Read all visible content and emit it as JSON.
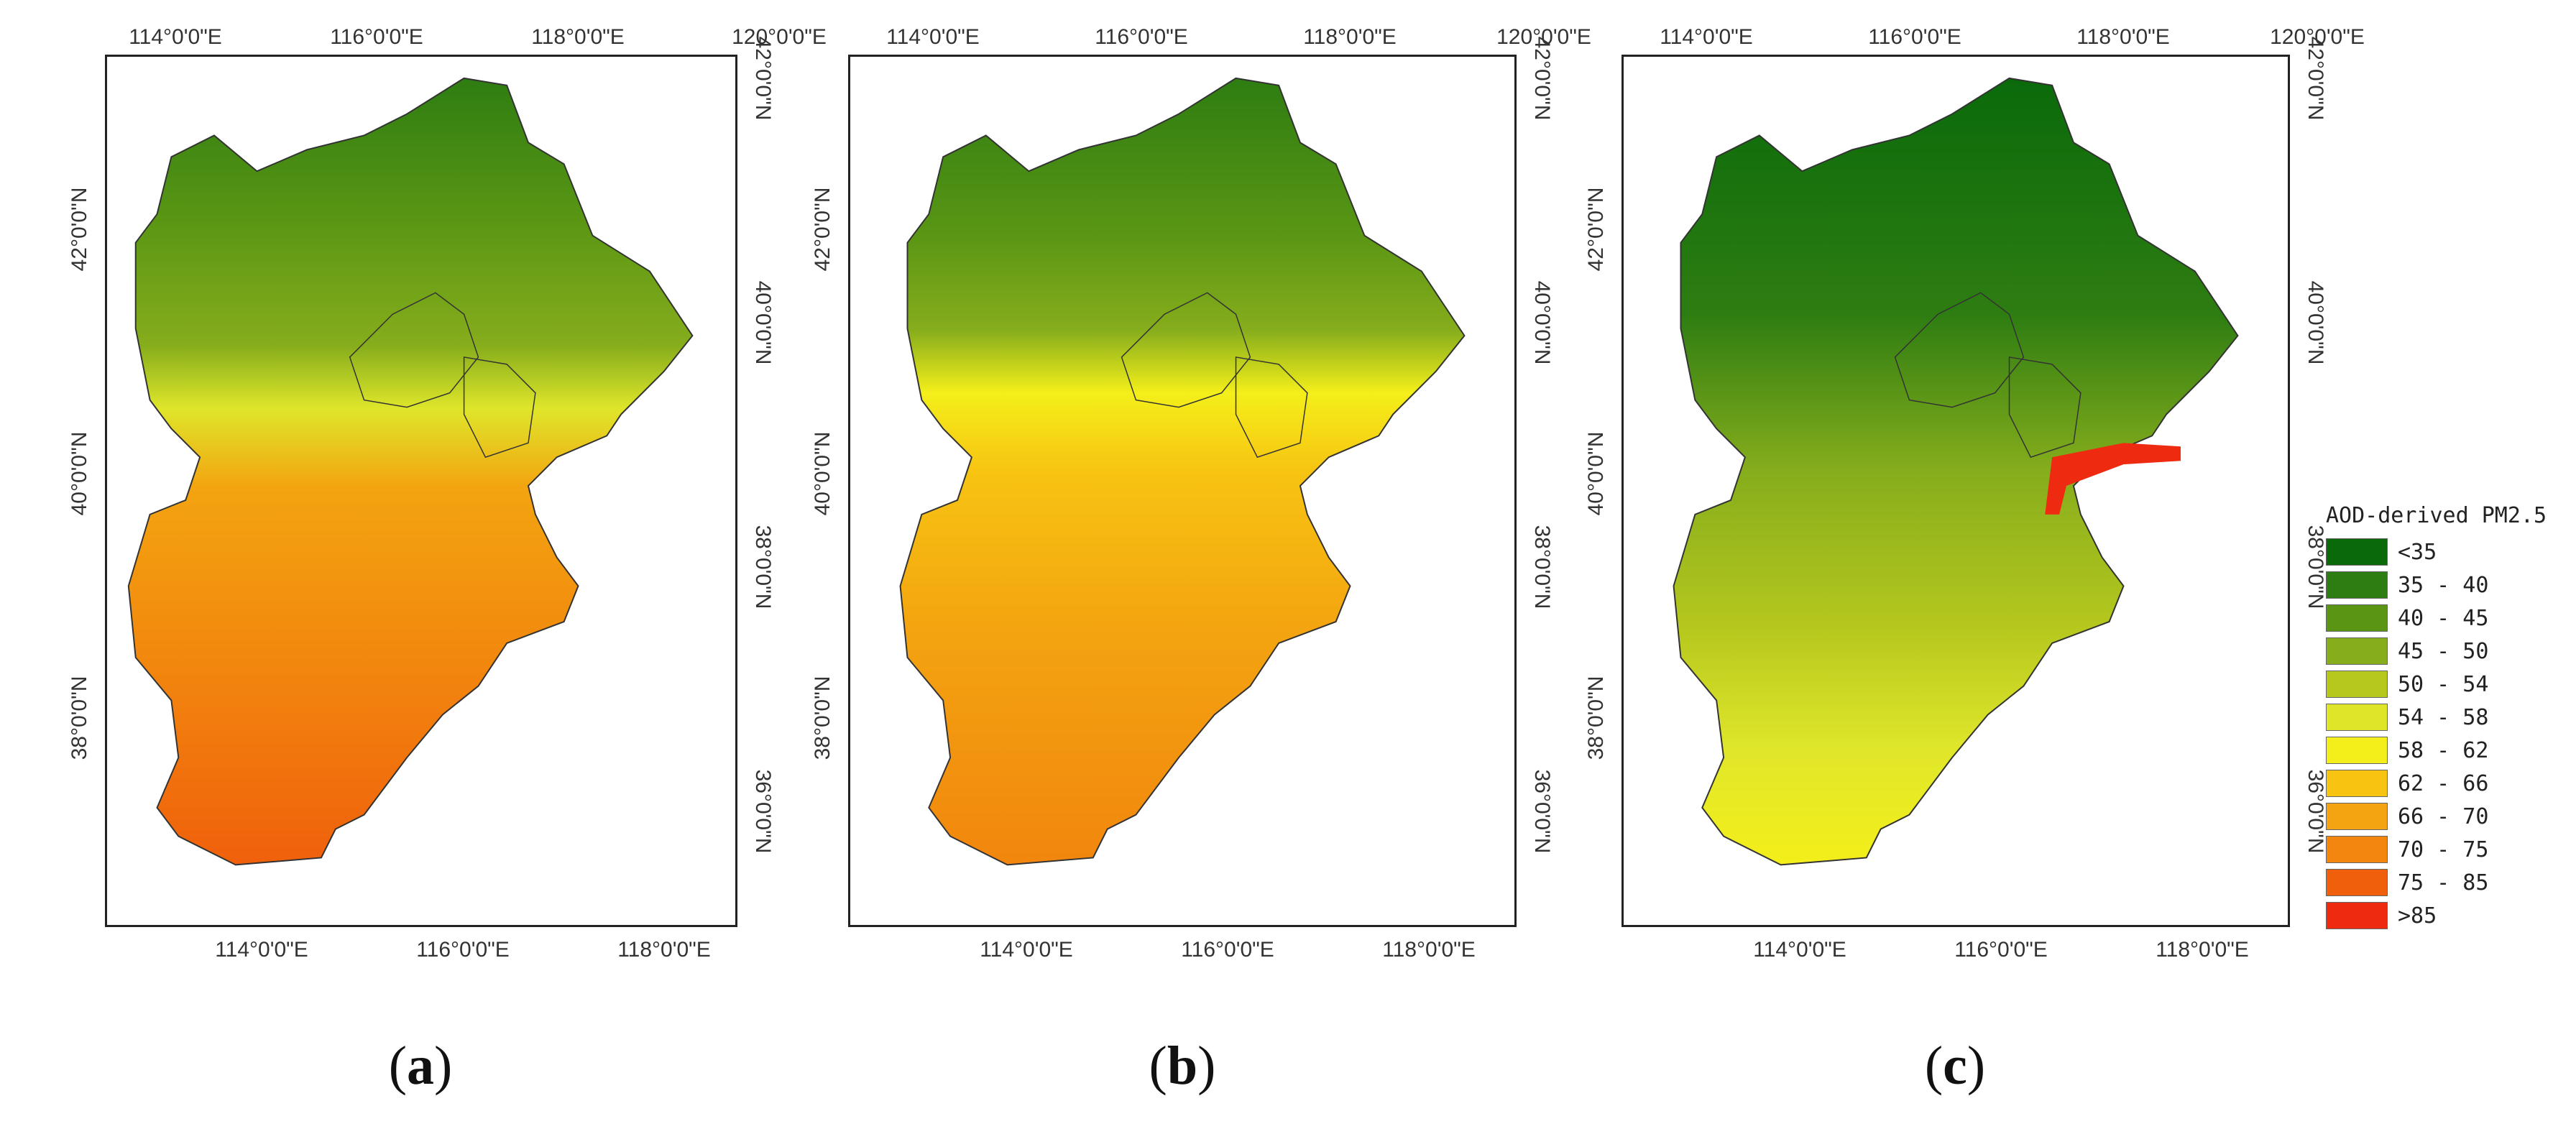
{
  "panels": [
    {
      "label": "a",
      "top_lon": [
        "114°0'0\"E",
        "116°0'0\"E",
        "118°0'0\"E",
        "120°0'0\"E"
      ],
      "bottom_lon": [
        "114°0'0\"E",
        "116°0'0\"E",
        "118°0'0\"E"
      ],
      "left_lat": [
        "42°0'0\"N",
        "40°0'0\"N",
        "38°0'0\"N"
      ],
      "right_lat": [
        "42°0'0\"N",
        "40°0'0\"N",
        "38°0'0\"N",
        "36°0'0\"N"
      ],
      "dominant_fill": "#e3a020"
    },
    {
      "label": "b",
      "top_lon": [
        "114°0'0\"E",
        "116°0'0\"E",
        "118°0'0\"E",
        "120°0'0\"E"
      ],
      "bottom_lon": [
        "114°0'0\"E",
        "116°0'0\"E",
        "118°0'0\"E"
      ],
      "left_lat": [
        "42°0'0\"N",
        "40°0'0\"N",
        "38°0'0\"N"
      ],
      "right_lat": [
        "42°0'0\"N",
        "40°0'0\"N",
        "38°0'0\"N",
        "36°0'0\"N"
      ],
      "dominant_fill": "#f2b014"
    },
    {
      "label": "c",
      "top_lon": [
        "114°0'0\"E",
        "116°0'0\"E",
        "118°0'0\"E",
        "120°0'0\"E"
      ],
      "bottom_lon": [
        "114°0'0\"E",
        "116°0'0\"E",
        "118°0'0\"E"
      ],
      "left_lat": [
        "42°0'0\"N",
        "40°0'0\"N",
        "38°0'0\"N"
      ],
      "right_lat": [
        "42°0'0\"N",
        "40°0'0\"N",
        "38°0'0\"N",
        "36°0'0\"N"
      ],
      "dominant_fill": "#d8e02a"
    }
  ],
  "legend": {
    "title": "AOD-derived PM2.5",
    "classes": [
      {
        "label": "<35",
        "color": "#0a6a0a"
      },
      {
        "label": "35 - 40",
        "color": "#2e7d12"
      },
      {
        "label": "40 - 45",
        "color": "#5a9614"
      },
      {
        "label": "45 - 50",
        "color": "#86ad1c"
      },
      {
        "label": "50 - 54",
        "color": "#b6c81e"
      },
      {
        "label": "54 - 58",
        "color": "#dfe62a"
      },
      {
        "label": "58 - 62",
        "color": "#f4ef1a"
      },
      {
        "label": "62 - 66",
        "color": "#f7c412"
      },
      {
        "label": "66 - 70",
        "color": "#f3a410"
      },
      {
        "label": "70 - 75",
        "color": "#f2860e"
      },
      {
        "label": "75 - 85",
        "color": "#f0600c"
      },
      {
        "label": ">85",
        "color": "#ee2a10"
      }
    ]
  }
}
